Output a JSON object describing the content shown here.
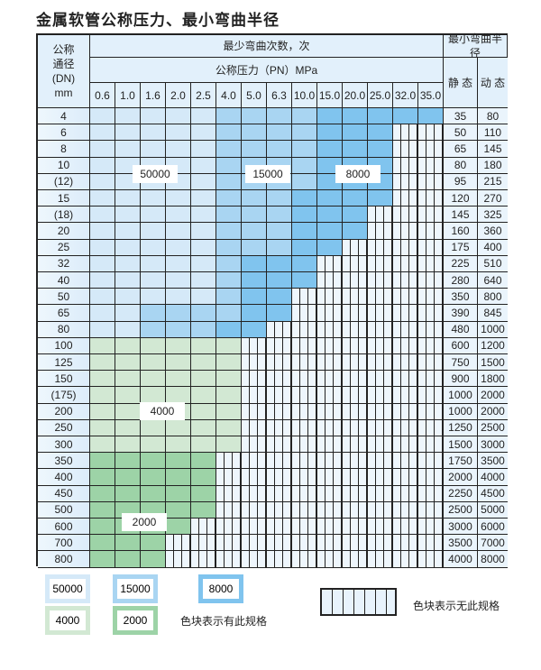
{
  "title": "金属软管公称压力、最小弯曲半径",
  "header": {
    "dn_label": "公称\n通径\n(DN)\nmm",
    "cycles_label": "最少弯曲次数，次",
    "pressure_label": "公称压力（PN）MPa",
    "radius_label": "最小弯曲半径",
    "static_label": "静 态",
    "dynamic_label": "动 态",
    "pressures": [
      "0.6",
      "1.0",
      "1.6",
      "2.0",
      "2.5",
      "4.0",
      "5.0",
      "6.3",
      "10.0",
      "15.0",
      "20.0",
      "25.0",
      "32.0",
      "35.0"
    ]
  },
  "colors": {
    "a": "#d5e9f8",
    "b": "#a9d5f2",
    "c": "#80c4ee",
    "d": "#d2e8d3",
    "e": "#9dd3a7",
    "x": "none"
  },
  "region_labels": {
    "a": "50000",
    "b": "15000",
    "c": "8000",
    "d": "4000",
    "e": "2000"
  },
  "rows": [
    {
      "dn": "4",
      "static": "35",
      "dynamic": "80",
      "cells": "aaaaabbbbccccc"
    },
    {
      "dn": "6",
      "static": "50",
      "dynamic": "110",
      "cells": "aaaaabbbbcccxx"
    },
    {
      "dn": "8",
      "static": "65",
      "dynamic": "145",
      "cells": "aaaaabbbbcccxx"
    },
    {
      "dn": "10",
      "static": "80",
      "dynamic": "180",
      "cells": "aaaaabbbbcccxx"
    },
    {
      "dn": "(12)",
      "static": "95",
      "dynamic": "215",
      "cells": "aaaaabbbbcccxx"
    },
    {
      "dn": "15",
      "static": "120",
      "dynamic": "270",
      "cells": "aaaaabbbccccxx"
    },
    {
      "dn": "(18)",
      "static": "145",
      "dynamic": "325",
      "cells": "aaaaabbbcccxxx"
    },
    {
      "dn": "20",
      "static": "160",
      "dynamic": "360",
      "cells": "aaaaabbbcccxxx"
    },
    {
      "dn": "25",
      "static": "175",
      "dynamic": "400",
      "cells": "aaaaabbbccxxxx"
    },
    {
      "dn": "32",
      "static": "225",
      "dynamic": "510",
      "cells": "aaaaabcccxxxxx"
    },
    {
      "dn": "40",
      "static": "280",
      "dynamic": "640",
      "cells": "aaaaabcccxxxxx"
    },
    {
      "dn": "50",
      "static": "350",
      "dynamic": "800",
      "cells": "aaaaabccxxxxxx"
    },
    {
      "dn": "65",
      "static": "390",
      "dynamic": "845",
      "cells": "aabbbbccxxxxxx"
    },
    {
      "dn": "80",
      "static": "480",
      "dynamic": "1000",
      "cells": "aabbbccxxxxxxx"
    },
    {
      "dn": "100",
      "static": "600",
      "dynamic": "1200",
      "cells": "ddddddxxxxxxxx"
    },
    {
      "dn": "125",
      "static": "750",
      "dynamic": "1500",
      "cells": "ddddddxxxxxxxx"
    },
    {
      "dn": "150",
      "static": "900",
      "dynamic": "1800",
      "cells": "ddddddxxxxxxxx"
    },
    {
      "dn": "(175)",
      "static": "1000",
      "dynamic": "2000",
      "cells": "ddddddxxxxxxxx"
    },
    {
      "dn": "200",
      "static": "1000",
      "dynamic": "2000",
      "cells": "ddddddxxxxxxxx"
    },
    {
      "dn": "250",
      "static": "1250",
      "dynamic": "2500",
      "cells": "ddddddxxxxxxxx"
    },
    {
      "dn": "300",
      "static": "1500",
      "dynamic": "3000",
      "cells": "ddddddxxxxxxxx"
    },
    {
      "dn": "350",
      "static": "1750",
      "dynamic": "3500",
      "cells": "eeeeexxxxxxxxx"
    },
    {
      "dn": "400",
      "static": "2000",
      "dynamic": "4000",
      "cells": "eeeeexxxxxxxxx"
    },
    {
      "dn": "450",
      "static": "2250",
      "dynamic": "4500",
      "cells": "eeeeexxxxxxxxx"
    },
    {
      "dn": "500",
      "static": "2500",
      "dynamic": "5000",
      "cells": "eeeeexxxxxxxxx"
    },
    {
      "dn": "600",
      "static": "3000",
      "dynamic": "6000",
      "cells": "eeeexxxxxxxxxx"
    },
    {
      "dn": "700",
      "static": "3500",
      "dynamic": "7000",
      "cells": "eeexxxxxxxxxxx"
    },
    {
      "dn": "800",
      "static": "4000",
      "dynamic": "8000",
      "cells": "eeexxxxxxxxxxx"
    }
  ],
  "legend": {
    "available_text": "色块表示有此规格",
    "unavailable_text": "色块表示无此规格"
  }
}
